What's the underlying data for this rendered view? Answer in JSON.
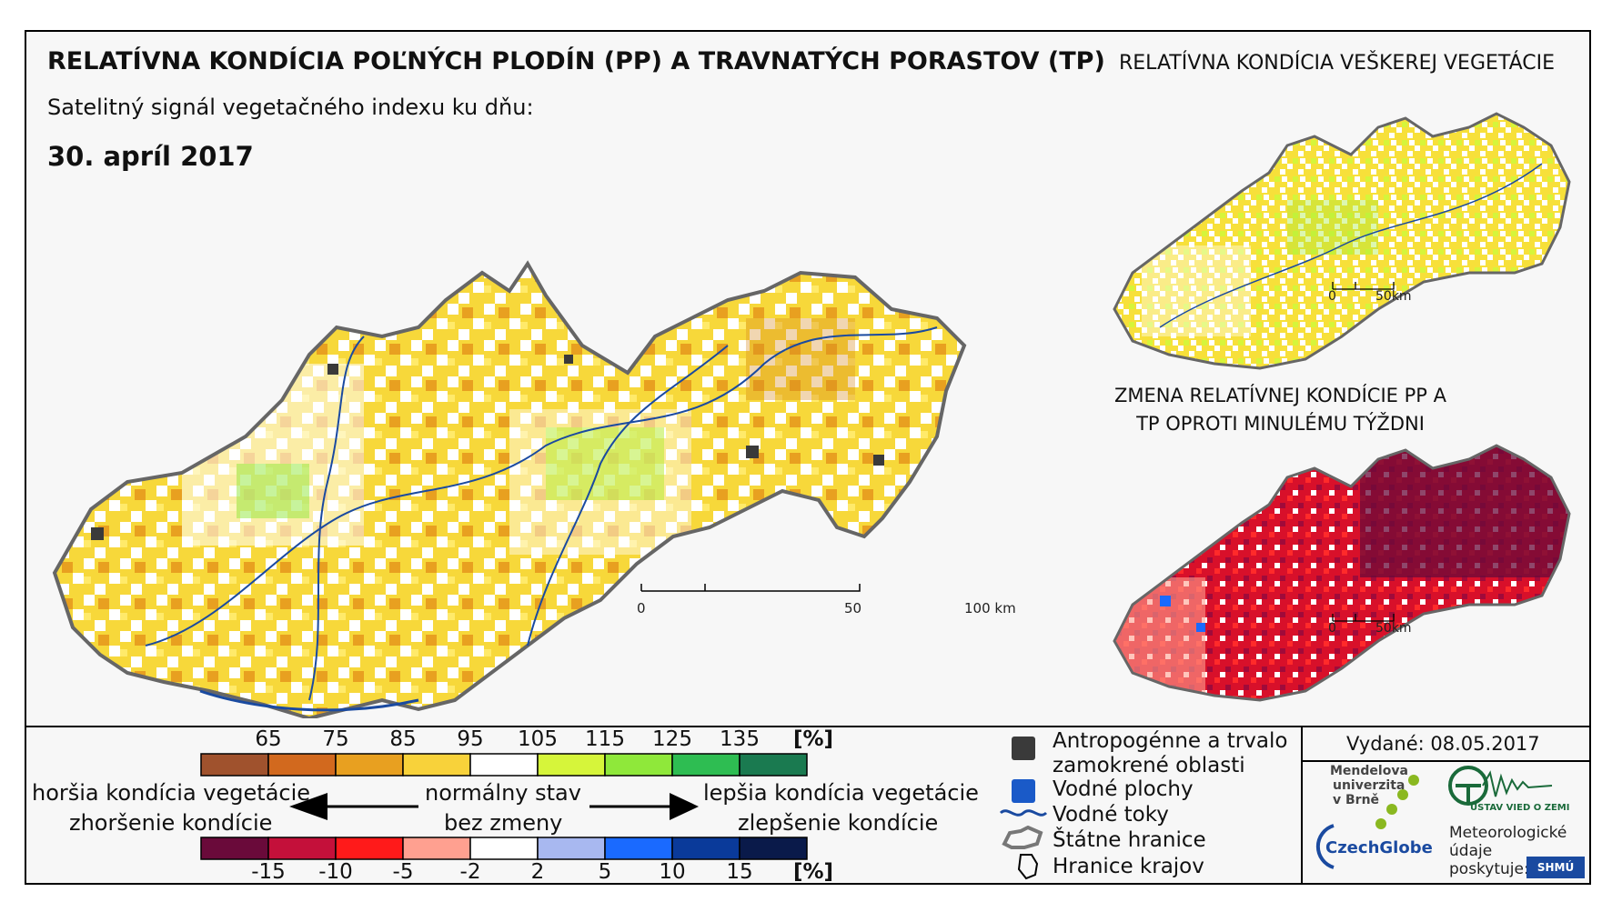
{
  "header": {
    "title": "RELATÍVNA KONDÍCIA POĽNÝCH PLODÍN (PP) A TRAVNATÝCH PORASTOV (TP)",
    "subtitle": "Satelitný signál vegetačného indexu ku dňu:",
    "date": "30. apríl 2017",
    "right_title": "RELATÍVNA KONDÍCIA VEŠKEREJ VEGETÁCIE",
    "change_title": "ZMENA RELATÍVNEJ KONDÍCIE PP A TP OPROTI MINULÉMU TÝŽDNI"
  },
  "scalebars": {
    "main": [
      "0",
      "50",
      "100 km"
    ],
    "small_a": [
      "0",
      "50km"
    ],
    "small_b": [
      "0",
      "50km"
    ]
  },
  "legend_condition": {
    "ticks": [
      "65",
      "75",
      "85",
      "95",
      "105",
      "115",
      "125",
      "135"
    ],
    "unit": "[%]",
    "colors": [
      "#a0522d",
      "#d2691e",
      "#e8a020",
      "#f8d23a",
      "#ffffff",
      "#d6f53a",
      "#8fe83a",
      "#2ebd52",
      "#1a7a50"
    ]
  },
  "legend_change": {
    "ticks": [
      "-15",
      "-10",
      "-5",
      "-2",
      "2",
      "5",
      "10",
      "15"
    ],
    "unit": "[%]",
    "colors": [
      "#6a0a3a",
      "#c4103a",
      "#ff1a1a",
      "#ffa090",
      "#ffffff",
      "#a8b8f0",
      "#1a6aff",
      "#0a3a9a",
      "#0a1a4a"
    ]
  },
  "legend_text": {
    "worse_condition": "horšia kondícia vegetácie",
    "worsened": "zhoršenie kondície",
    "normal": "normálny stav",
    "no_change": "bez zmeny",
    "better_condition": "lepšia kondícia vegetácie",
    "improved": "zlepšenie kondície"
  },
  "map_legend": {
    "anthropogenic_1": "Antropogénne a trvalo",
    "anthropogenic_2": "zamokrené oblasti",
    "water_bodies": "Vodné plochy",
    "rivers": "Vodné toky",
    "state_border": "Štátne hranice",
    "region_border": "Hranice krajov",
    "colors": {
      "anthropogenic": "#3a3a3a",
      "water": "#1a5ac8",
      "river": "#1a4aa0"
    }
  },
  "issued": "Vydané: 08.05.2017",
  "logos": {
    "mendelu_1": "Mendelova",
    "mendelu_2": "univerzita",
    "mendelu_3": "v Brně",
    "czechglobe": "CzechGlobe",
    "uvoz": "ÚSTAV VIED O ZEMI",
    "met_1": "Meteorologické",
    "met_2": "údaje",
    "met_3": "poskytuje:",
    "shmu": "SHMÚ"
  }
}
